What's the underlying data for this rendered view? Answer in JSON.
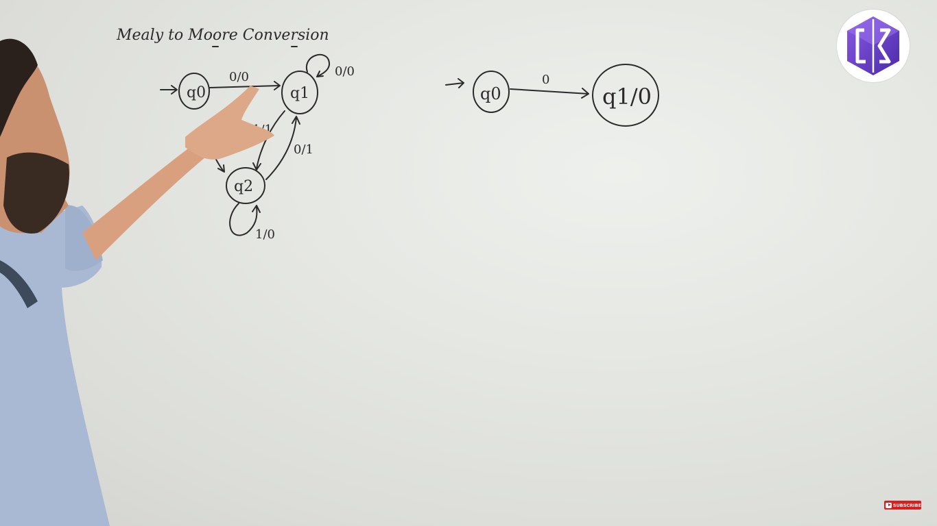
{
  "whiteboard": {
    "title": "Mealy to Moore Conversion",
    "mealy": {
      "states": [
        "q0",
        "q1",
        "q2"
      ],
      "transitions": [
        "0/0",
        "0/0",
        "1/1",
        "0/1",
        "1/0"
      ]
    },
    "moore": {
      "states": [
        "q0",
        "q1/0"
      ],
      "transition": "0"
    }
  },
  "channel": {
    "logo_icon": "gs-hexagon-logo",
    "subscribe_label": "SUBSCRIBE"
  },
  "colors": {
    "board": "#e6e8e4",
    "ink": "#2a2a2a",
    "shirt": "#a9b9d3",
    "skin": "#d8a07f",
    "logo_purple": "#6a3fd0",
    "subscribe_red": "#d61f1f"
  }
}
